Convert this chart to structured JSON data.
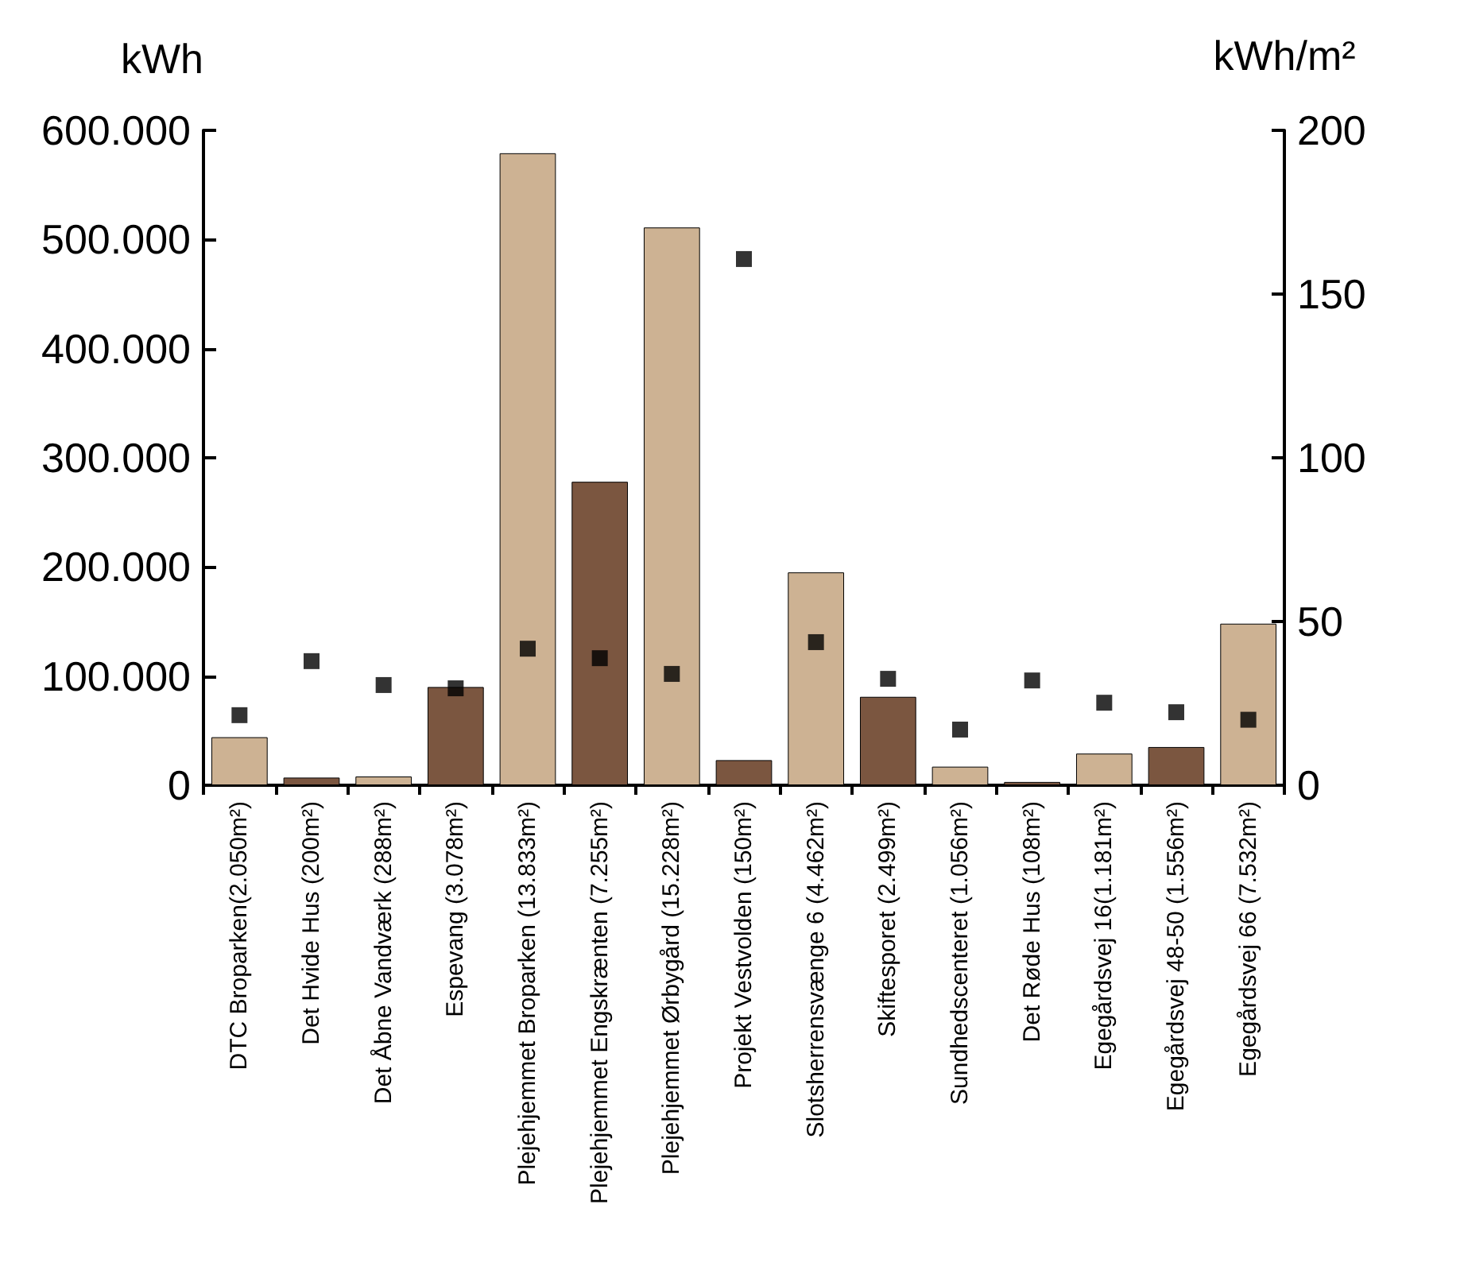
{
  "chart_data": {
    "type": "bar",
    "ylabel": "kWh",
    "y2label": "kWh/m²",
    "categories": [
      "DTC Broparken(2.050m²)",
      "Det Hvide Hus (200m²)",
      "Det Åbne Vandværk (288m²)",
      "Espevang (3.078m²)",
      "Plejehjemmet Broparken (13.833m²)",
      "Plejehjemmet Engskrænten (7.255m²)",
      "Plejehjemmet Ørbygård (15.228m²)",
      "Projekt Vestvolden (150m²)",
      "Slotsherrensvænge 6 (4.462m²)",
      "Skiftesporet (2.499m²)",
      "Sundhedscenteret (1.056m²)",
      "Det Røde Hus (108m²)",
      "Egegårdsvej 16(1.181m²)",
      "Egegårdsvej 48-50 (1.556m²)",
      "Egegårdsvej 66 (7.532m²)"
    ],
    "series": [
      {
        "values": [
          44000,
          7000,
          8000,
          90000,
          579000,
          278000,
          511000,
          23000,
          195000,
          81000,
          17000,
          3000,
          29000,
          35000,
          148000
        ],
        "colors": [
          "#cdb293",
          "#7b5640",
          "#cdb293",
          "#7b5640",
          "#cdb293",
          "#7b5640",
          "#cdb293",
          "#7b5640",
          "#cdb293",
          "#7b5640",
          "#cdb293",
          "#7b5640",
          "#cdb293",
          "#7b5640",
          "#cdb293"
        ]
      },
      {
        "type": "scatter",
        "axis": "y2",
        "color": "#000000",
        "marker": "square",
        "values": [
          21.4,
          37.9,
          30.6,
          29.6,
          41.7,
          38.8,
          34,
          160.7,
          43.7,
          32.5,
          17,
          32,
          25.2,
          22.3,
          20
        ]
      }
    ],
    "ylim": [
      0,
      600000
    ],
    "yticks": [
      {
        "value": 0,
        "label": "0"
      },
      {
        "value": 100000,
        "label": "100.000"
      },
      {
        "value": 200000,
        "label": "200.000"
      },
      {
        "value": 300000,
        "label": "300.000"
      },
      {
        "value": 400000,
        "label": "400.000"
      },
      {
        "value": 500000,
        "label": "500.000"
      },
      {
        "value": 600000,
        "label": "600.000"
      }
    ],
    "y2lim": [
      0,
      200
    ],
    "y2ticks": [
      0,
      50,
      100,
      150,
      200
    ],
    "grid": false
  }
}
